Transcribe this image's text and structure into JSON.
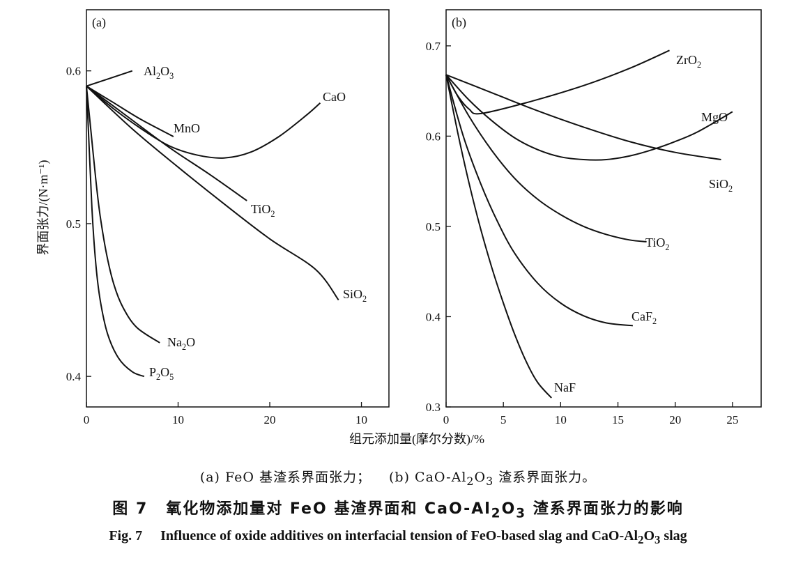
{
  "chart_data": [
    {
      "panel_label": "(a)",
      "type": "line",
      "x_ticks": [
        "0",
        "10",
        "20",
        "10"
      ],
      "xlim": [
        0,
        33
      ],
      "y_ticks": [
        "0.4",
        "0.5",
        "0.6"
      ],
      "ylim": [
        0.38,
        0.64
      ],
      "ylabel": "界面张力/(N·m⁻¹)",
      "series": [
        {
          "name": "Al2O3",
          "label_main": "Al",
          "label_sub1": "2",
          "label_mid": "O",
          "label_sub2": "3",
          "points": [
            [
              0,
              0.59
            ],
            [
              5,
              0.6
            ]
          ]
        },
        {
          "name": "CaO",
          "label_main": "CaO",
          "points": [
            [
              0,
              0.59
            ],
            [
              3,
              0.575
            ],
            [
              6,
              0.562
            ],
            [
              9,
              0.551
            ],
            [
              12,
              0.545
            ],
            [
              15,
              0.543
            ],
            [
              18,
              0.547
            ],
            [
              21,
              0.557
            ],
            [
              24,
              0.571
            ],
            [
              25.5,
              0.579
            ]
          ]
        },
        {
          "name": "MnO",
          "label_main": "MnO",
          "points": [
            [
              0,
              0.59
            ],
            [
              3,
              0.579
            ],
            [
              6,
              0.568
            ],
            [
              9.5,
              0.557
            ]
          ]
        },
        {
          "name": "TiO2",
          "label_main": "TiO",
          "label_sub1": "2",
          "points": [
            [
              0,
              0.59
            ],
            [
              4.5,
              0.57
            ],
            [
              9,
              0.55
            ],
            [
              13.5,
              0.532
            ],
            [
              17.5,
              0.515
            ]
          ]
        },
        {
          "name": "SiO2",
          "label_main": "SiO",
          "label_sub1": "2",
          "points": [
            [
              0,
              0.59
            ],
            [
              5,
              0.562
            ],
            [
              10,
              0.537
            ],
            [
              15,
              0.513
            ],
            [
              20,
              0.49
            ],
            [
              25,
              0.47
            ],
            [
              27.5,
              0.45
            ]
          ]
        },
        {
          "name": "Na2O",
          "label_main": "Na",
          "label_sub1": "2",
          "label_mid": "O",
          "points": [
            [
              0,
              0.59
            ],
            [
              0.5,
              0.56
            ],
            [
              1,
              0.53
            ],
            [
              1.5,
              0.505
            ],
            [
              2.2,
              0.48
            ],
            [
              3,
              0.46
            ],
            [
              4,
              0.445
            ],
            [
              5.5,
              0.432
            ],
            [
              8,
              0.422
            ]
          ]
        },
        {
          "name": "P2O5",
          "label_main": "P",
          "label_sub1": "2",
          "label_mid": "O",
          "label_sub2": "5",
          "points": [
            [
              0,
              0.59
            ],
            [
              0.3,
              0.55
            ],
            [
              0.6,
              0.51
            ],
            [
              1,
              0.475
            ],
            [
              1.5,
              0.45
            ],
            [
              2.3,
              0.428
            ],
            [
              3.5,
              0.412
            ],
            [
              5,
              0.403
            ],
            [
              6.3,
              0.4
            ]
          ]
        }
      ]
    },
    {
      "panel_label": "(b)",
      "type": "line",
      "x_ticks": [
        "0",
        "5",
        "10",
        "15",
        "20",
        "25"
      ],
      "xlim": [
        0,
        27.5
      ],
      "y_ticks": [
        "0.3",
        "0.4",
        "0.5",
        "0.6",
        "0.7"
      ],
      "ylim": [
        0.3,
        0.74
      ],
      "series": [
        {
          "name": "ZrO2",
          "label_main": "ZrO",
          "label_sub1": "2",
          "points": [
            [
              0,
              0.668
            ],
            [
              1,
              0.645
            ],
            [
              2,
              0.63
            ],
            [
              3,
              0.625
            ],
            [
              7,
              0.637
            ],
            [
              12,
              0.656
            ],
            [
              16,
              0.675
            ],
            [
              19.5,
              0.695
            ]
          ]
        },
        {
          "name": "MgO",
          "label_main": "MgO",
          "points": [
            [
              0,
              0.668
            ],
            [
              2,
              0.64
            ],
            [
              4,
              0.617
            ],
            [
              6,
              0.598
            ],
            [
              8,
              0.585
            ],
            [
              10,
              0.577
            ],
            [
              12,
              0.574
            ],
            [
              14,
              0.574
            ],
            [
              16,
              0.578
            ],
            [
              18,
              0.585
            ],
            [
              20,
              0.594
            ],
            [
              22,
              0.605
            ],
            [
              25,
              0.627
            ]
          ]
        },
        {
          "name": "SiO2",
          "label_main": "SiO",
          "label_sub1": "2",
          "points": [
            [
              0,
              0.668
            ],
            [
              4,
              0.648
            ],
            [
              8,
              0.628
            ],
            [
              12,
              0.61
            ],
            [
              16,
              0.594
            ],
            [
              20,
              0.582
            ],
            [
              24,
              0.574
            ]
          ]
        },
        {
          "name": "TiO2",
          "label_main": "TiO",
          "label_sub1": "2",
          "points": [
            [
              0,
              0.668
            ],
            [
              2,
              0.622
            ],
            [
              4,
              0.584
            ],
            [
              6,
              0.553
            ],
            [
              8,
              0.53
            ],
            [
              10,
              0.513
            ],
            [
              12,
              0.5
            ],
            [
              14,
              0.491
            ],
            [
              16,
              0.485
            ],
            [
              17.5,
              0.483
            ]
          ]
        },
        {
          "name": "CaF2",
          "label_main": "CaF",
          "label_sub1": "2",
          "points": [
            [
              0,
              0.668
            ],
            [
              1.5,
              0.6
            ],
            [
              3,
              0.548
            ],
            [
              4.5,
              0.505
            ],
            [
              6,
              0.47
            ],
            [
              8,
              0.437
            ],
            [
              10,
              0.415
            ],
            [
              12,
              0.401
            ],
            [
              14,
              0.393
            ],
            [
              16.3,
              0.39
            ]
          ]
        },
        {
          "name": "NaF",
          "label_main": "NaF",
          "points": [
            [
              0,
              0.668
            ],
            [
              1,
              0.605
            ],
            [
              2,
              0.548
            ],
            [
              3,
              0.498
            ],
            [
              4,
              0.454
            ],
            [
              5,
              0.415
            ],
            [
              6,
              0.38
            ],
            [
              7,
              0.35
            ],
            [
              8,
              0.327
            ],
            [
              9.2,
              0.31
            ]
          ]
        }
      ]
    }
  ],
  "shared_xlabel": "组元添加量(摩尔分数)/%",
  "caption": {
    "sub_a": "(a) FeO 基渣系界面张力；",
    "sub_b_pre": "(b) CaO-Al",
    "sub_b_s1": "2",
    "sub_b_mid": "O",
    "sub_b_s2": "3",
    "sub_b_post": " 渣系界面张力。",
    "cn_fig": "图 7",
    "cn_pre": "氧化物添加量对 FeO 基渣界面和 CaO-Al",
    "cn_s1": "2",
    "cn_mid": "O",
    "cn_s2": "3",
    "cn_post": " 渣系界面张力的影响",
    "en_fig": "Fig. 7",
    "en_pre": "Influence of oxide additives on interfacial tension of FeO-based slag and CaO-Al",
    "en_s1": "2",
    "en_mid": "O",
    "en_s2": "3",
    "en_post": " slag"
  }
}
